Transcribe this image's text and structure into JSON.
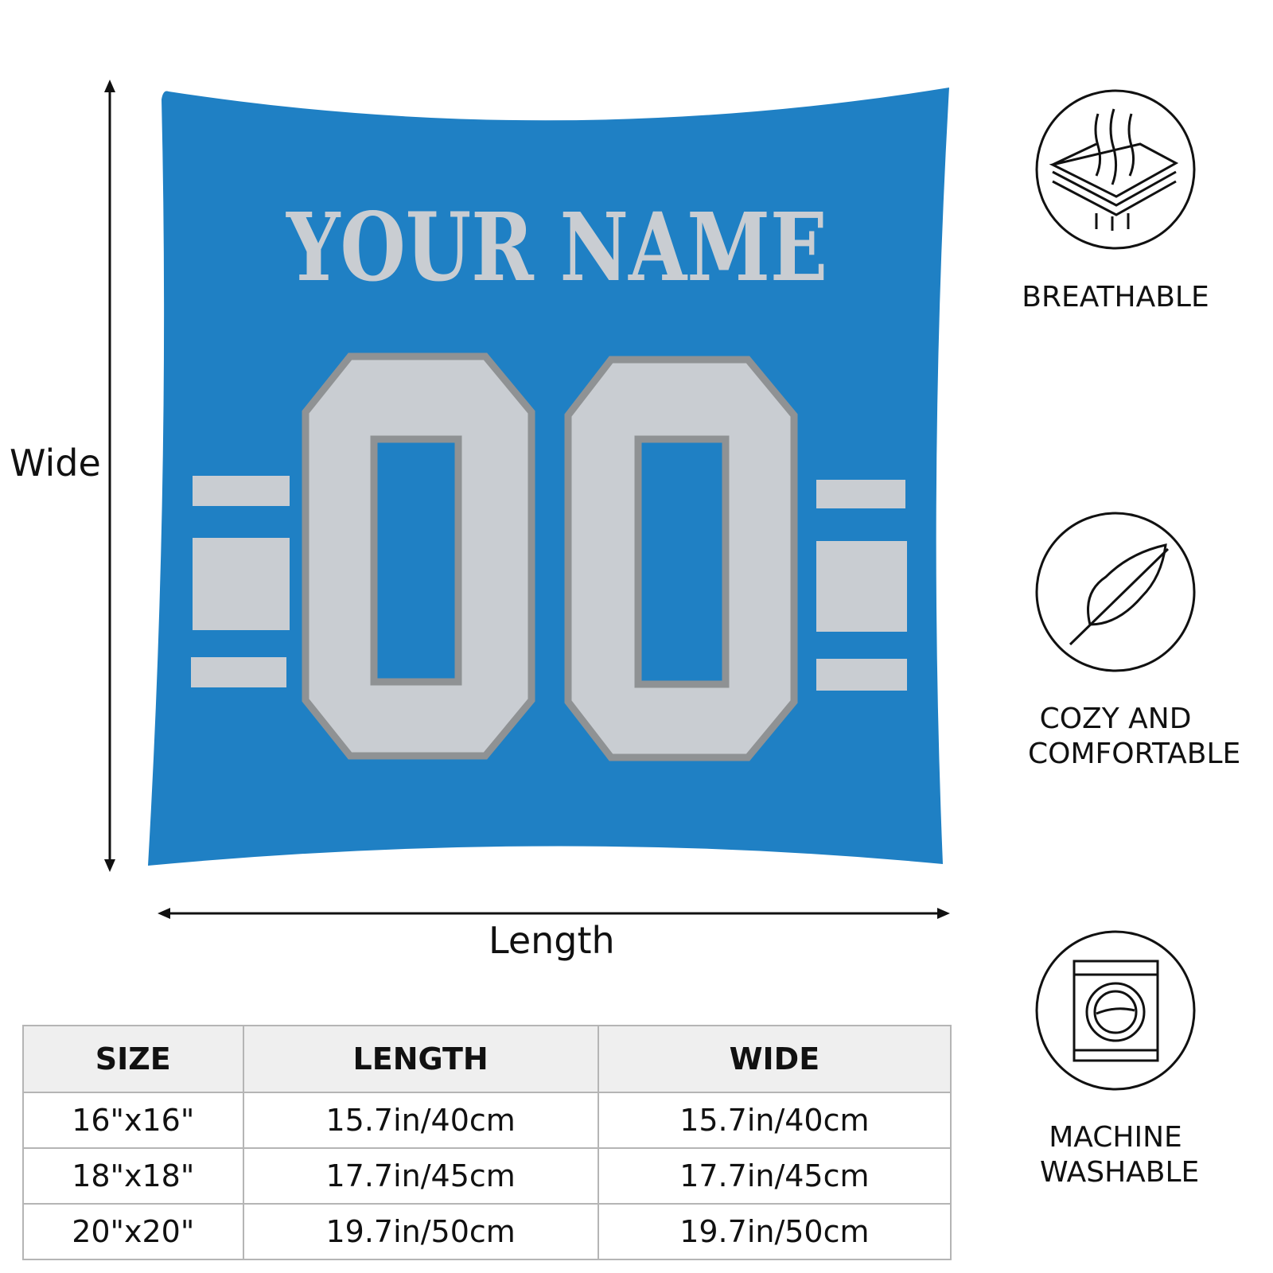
{
  "pillow": {
    "name_text": "YOUR NAME",
    "number_text": "00",
    "colors": {
      "fabric": "#1f80c4",
      "trim": "#c9cdd2",
      "outline": "#8f9294"
    }
  },
  "dimensions": {
    "wide_label": "Wide",
    "length_label": "Length"
  },
  "features": [
    {
      "icon": "breathable-layers-icon",
      "label": "BREATHABLE"
    },
    {
      "icon": "feather-icon",
      "label": "COZY AND COMFORTABLE"
    },
    {
      "icon": "washing-machine-icon",
      "label": "MACHINE WASHABLE"
    }
  ],
  "size_table": {
    "headers": [
      "SIZE",
      "LENGTH",
      "WIDE"
    ],
    "rows": [
      [
        "16\"x16\"",
        "15.7in/40cm",
        "15.7in/40cm"
      ],
      [
        "18\"x18\"",
        "17.7in/45cm",
        "17.7in/45cm"
      ],
      [
        "20\"x20\"",
        "19.7in/50cm",
        "19.7in/50cm"
      ]
    ]
  }
}
